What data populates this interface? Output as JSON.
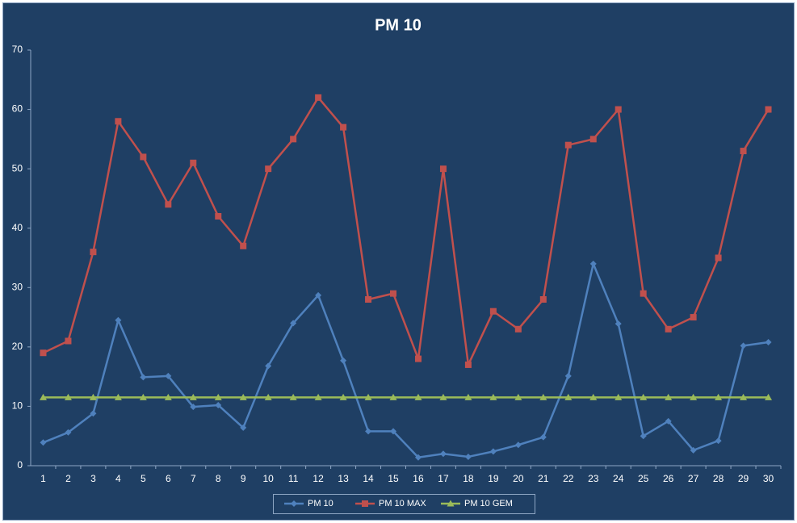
{
  "chart_data": {
    "type": "line",
    "title": "PM 10",
    "categories": [
      "1",
      "2",
      "3",
      "4",
      "5",
      "6",
      "7",
      "8",
      "9",
      "10",
      "11",
      "12",
      "13",
      "14",
      "15",
      "16",
      "17",
      "18",
      "19",
      "20",
      "21",
      "22",
      "23",
      "24",
      "25",
      "26",
      "27",
      "28",
      "29",
      "30"
    ],
    "series": [
      {
        "name": "PM 10",
        "color": "#4f81bd",
        "marker": "diamond",
        "values": [
          3.9,
          5.6,
          8.8,
          24.5,
          14.9,
          15.1,
          9.9,
          10.2,
          6.4,
          16.8,
          24.0,
          28.7,
          17.7,
          5.8,
          5.8,
          1.4,
          2.0,
          1.5,
          2.4,
          3.5,
          4.8,
          15.1,
          34.0,
          23.9,
          5.0,
          7.5,
          2.6,
          4.2,
          20.2,
          20.8
        ]
      },
      {
        "name": "PM 10 MAX",
        "color": "#c0504d",
        "marker": "square",
        "values": [
          19,
          21,
          36,
          58,
          52,
          44,
          51,
          42,
          37,
          50,
          55,
          62,
          57,
          28,
          29,
          18,
          50,
          17,
          26,
          23,
          28,
          54,
          55,
          60,
          29,
          23,
          25,
          35,
          53,
          60
        ]
      },
      {
        "name": "PM 10 GEM",
        "color": "#9bbb59",
        "marker": "triangle",
        "values": [
          11.5,
          11.5,
          11.5,
          11.5,
          11.5,
          11.5,
          11.5,
          11.5,
          11.5,
          11.5,
          11.5,
          11.5,
          11.5,
          11.5,
          11.5,
          11.5,
          11.5,
          11.5,
          11.5,
          11.5,
          11.5,
          11.5,
          11.5,
          11.5,
          11.5,
          11.5,
          11.5,
          11.5,
          11.5,
          11.5
        ]
      }
    ],
    "ylim": [
      0,
      70
    ],
    "yticks": [
      0,
      10,
      20,
      30,
      40,
      50,
      60,
      70
    ],
    "grid": false,
    "legend": "bottom"
  }
}
